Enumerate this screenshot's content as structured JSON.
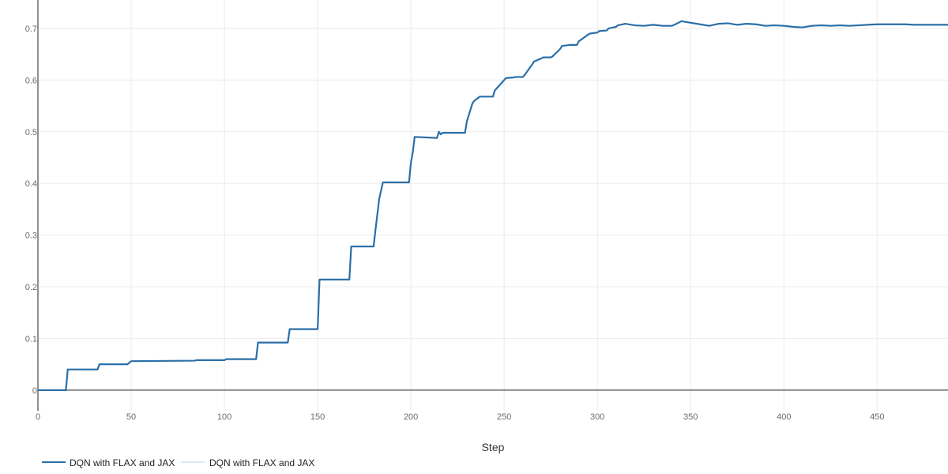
{
  "chart_data": {
    "type": "line",
    "title": "",
    "xlabel": "Step",
    "ylabel": "",
    "xlim": [
      0,
      488
    ],
    "ylim": [
      -0.04,
      0.755
    ],
    "x_ticks": [
      0,
      50,
      100,
      150,
      200,
      250,
      300,
      350,
      400,
      450
    ],
    "y_ticks": [
      0,
      0.1,
      0.2,
      0.3,
      0.4,
      0.5,
      0.6,
      0.7
    ],
    "y_tick_labels": [
      "0",
      "0.1",
      "0.2",
      "0.3",
      "0.4",
      "0.5",
      "0.6",
      "0.7"
    ],
    "grid": true,
    "legend_position": "bottom-left",
    "series": [
      {
        "name": "DQN with FLAX and JAX",
        "color": "#2a6fa8",
        "x": [
          0,
          15,
          16,
          32,
          33,
          48,
          50,
          84,
          85,
          100,
          101,
          117,
          118,
          134,
          135,
          150,
          151,
          167,
          168,
          180,
          181,
          183,
          185,
          199,
          200,
          201,
          202,
          214,
          215,
          216,
          217,
          229,
          230,
          233,
          234,
          237,
          238,
          244,
          245,
          250,
          251,
          255,
          256,
          260,
          261,
          265,
          266,
          270,
          271,
          275,
          276,
          280,
          281,
          285,
          286,
          289,
          290,
          295,
          296,
          300,
          301,
          305,
          306,
          310,
          311,
          315,
          320,
          325,
          330,
          335,
          340,
          343,
          345,
          350,
          355,
          360,
          365,
          370,
          375,
          380,
          385,
          390,
          395,
          400,
          405,
          410,
          415,
          420,
          425,
          430,
          435,
          440,
          445,
          450,
          455,
          460,
          465,
          470,
          475,
          480,
          488
        ],
        "y": [
          0,
          0,
          0.04,
          0.04,
          0.05,
          0.05,
          0.056,
          0.057,
          0.058,
          0.058,
          0.06,
          0.06,
          0.092,
          0.092,
          0.118,
          0.118,
          0.214,
          0.214,
          0.278,
          0.278,
          0.31,
          0.37,
          0.402,
          0.402,
          0.44,
          0.46,
          0.49,
          0.488,
          0.5,
          0.495,
          0.498,
          0.498,
          0.52,
          0.555,
          0.56,
          0.568,
          0.568,
          0.568,
          0.58,
          0.6,
          0.604,
          0.605,
          0.606,
          0.606,
          0.61,
          0.63,
          0.636,
          0.642,
          0.644,
          0.644,
          0.646,
          0.66,
          0.666,
          0.668,
          0.668,
          0.668,
          0.675,
          0.688,
          0.69,
          0.692,
          0.695,
          0.696,
          0.7,
          0.703,
          0.706,
          0.709,
          0.706,
          0.705,
          0.707,
          0.705,
          0.705,
          0.71,
          0.714,
          0.711,
          0.708,
          0.705,
          0.709,
          0.71,
          0.707,
          0.709,
          0.708,
          0.705,
          0.706,
          0.705,
          0.703,
          0.702,
          0.705,
          0.706,
          0.705,
          0.706,
          0.705,
          0.706,
          0.707,
          0.708,
          0.708,
          0.708,
          0.708,
          0.707,
          0.707,
          0.707,
          0.707
        ]
      },
      {
        "name": "DQN with FLAX and JAX",
        "color": "#dfe9f3",
        "x": [],
        "y": []
      }
    ]
  }
}
